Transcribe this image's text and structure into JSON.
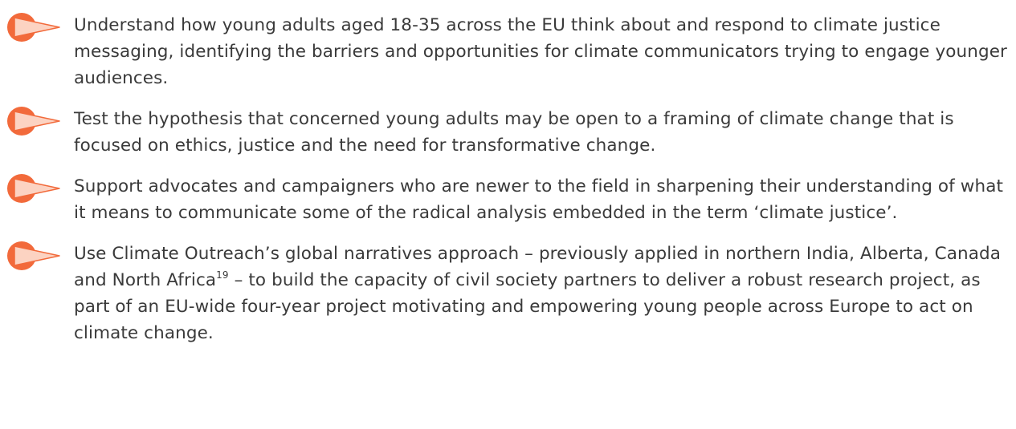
{
  "items": [
    {
      "text": "Understand how young adults aged 18-35 across the EU think about and respond to climate justice messaging, identifying the barriers and opportunities for climate communicators trying to engage younger audiences."
    },
    {
      "text": "Test the hypothesis that concerned young adults may be open to a framing of climate change that is focused on ethics, justice and the need for transformative change."
    },
    {
      "text": "Support advocates and campaigners who are newer to the field in sharpening their understanding of what it means to communicate some of the radical analysis embedded in the term ‘climate justice’."
    },
    {
      "text": "Use Climate Outreach’s global narratives approach – previously applied in northern India, Alberta, Canada and North Africa",
      "footnote": "19",
      "text_after": " – to build the capacity of civil society partners to deliver a robust research project, as part of an EU-wide four-year project motivating and empowering young people across Europe to act on climate change."
    }
  ]
}
